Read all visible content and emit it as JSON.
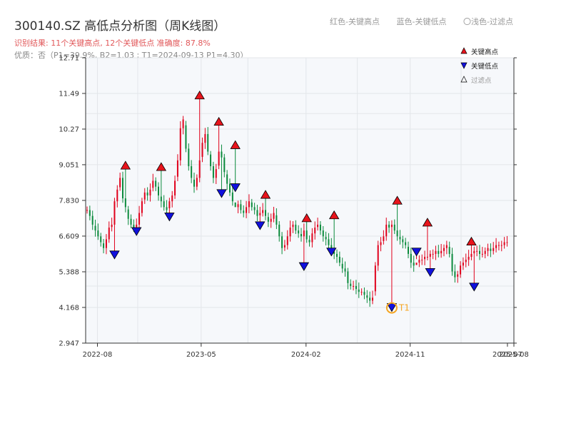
{
  "title": "300140.SZ 高低点分析图（周K线图）",
  "subtitle": "识别结果: 11个关键高点, 12个关键低点  准确度: 87.8%",
  "subtitle2": "优质：否（P1=39.9%, B2=1.03 ; T1=2024-09-13 P1=4.30）",
  "top_legend": {
    "red": "红色-关键高点",
    "blue": "蓝色-关键低点",
    "light": "〇浅色-过滤点"
  },
  "colors": {
    "up": "#e0001b",
    "down": "#0b8a3c",
    "high_marker": "#e8141c",
    "low_marker": "#1111dd",
    "t1": "#f5a623",
    "grid": "#e3e6ea",
    "plot_bg": "#f6f8fb"
  },
  "chart_data": {
    "type": "candlestick",
    "x_ticks": [
      "2022-08",
      "2023-05",
      "2024-02",
      "2024-11",
      "2025-07",
      "2025-08"
    ],
    "y_ticks": [
      "2.947",
      "4.168",
      "5.388",
      "6.609",
      "7.830",
      "9.051",
      "10.27",
      "11.49",
      "12.71"
    ],
    "ylim": [
      2.947,
      12.71
    ],
    "legend": [
      {
        "name": "关键高点",
        "marker": "triangle-up",
        "color": "#e8141c"
      },
      {
        "name": "关键低点",
        "marker": "triangle-down",
        "color": "#1111dd"
      },
      {
        "name": "过滤点",
        "marker": "triangle-up-hollow",
        "color": "#999999"
      }
    ],
    "key_highs": [
      {
        "date": "2022-10-14",
        "value": 8.9
      },
      {
        "date": "2023-01-13",
        "value": 8.85
      },
      {
        "date": "2023-04-28",
        "value": 11.3
      },
      {
        "date": "2023-06-16",
        "value": 10.4
      },
      {
        "date": "2023-07-28",
        "value": 9.6
      },
      {
        "date": "2023-10-20",
        "value": 7.9
      },
      {
        "date": "2024-02-02",
        "value": 7.1
      },
      {
        "date": "2024-04-12",
        "value": 7.2
      },
      {
        "date": "2024-09-27",
        "value": 7.7
      },
      {
        "date": "2024-12-20",
        "value": 6.95
      },
      {
        "date": "2025-04-11",
        "value": 6.3
      }
    ],
    "key_lows": [
      {
        "date": "2022-09-16",
        "value": 6.1
      },
      {
        "date": "2022-11-11",
        "value": 6.9
      },
      {
        "date": "2023-02-10",
        "value": 7.4
      },
      {
        "date": "2023-06-23",
        "value": 8.2
      },
      {
        "date": "2023-07-28",
        "value": 8.4
      },
      {
        "date": "2023-10-06",
        "value": 7.1
      },
      {
        "date": "2024-01-26",
        "value": 5.7
      },
      {
        "date": "2024-04-05",
        "value": 6.2
      },
      {
        "date": "2024-09-13",
        "value": 4.3
      },
      {
        "date": "2024-11-15",
        "value": 6.2
      },
      {
        "date": "2024-12-27",
        "value": 5.5
      },
      {
        "date": "2025-04-18",
        "value": 5.0
      }
    ],
    "t1": {
      "label": "T1",
      "date": "2024-09-13",
      "value": 4.3
    },
    "close_path": [
      7.5,
      7.3,
      7.0,
      6.8,
      6.6,
      6.4,
      6.2,
      6.5,
      6.9,
      7.0,
      7.8,
      8.2,
      8.6,
      7.9,
      7.6,
      7.2,
      7.0,
      6.9,
      7.0,
      7.4,
      7.8,
      8.1,
      8.0,
      8.2,
      8.5,
      8.3,
      8.0,
      7.8,
      7.6,
      7.5,
      7.8,
      8.0,
      8.5,
      9.2,
      10.3,
      10.6,
      9.6,
      9.0,
      8.6,
      8.3,
      8.6,
      9.2,
      9.8,
      10.1,
      9.5,
      9.0,
      8.6,
      8.9,
      9.5,
      9.3,
      8.8,
      8.4,
      8.1,
      7.8,
      7.6,
      7.7,
      7.5,
      7.4,
      7.6,
      7.8,
      7.6,
      7.5,
      7.3,
      7.4,
      7.5,
      7.3,
      7.1,
      7.2,
      7.4,
      7.0,
      6.6,
      6.2,
      6.3,
      6.6,
      6.9,
      7.0,
      6.8,
      6.7,
      6.6,
      6.8,
      6.5,
      6.4,
      6.7,
      6.9,
      7.0,
      6.8,
      6.6,
      6.5,
      6.3,
      6.1,
      6.0,
      5.9,
      5.7,
      5.5,
      5.4,
      5.0,
      4.9,
      4.9,
      4.8,
      4.7,
      4.7,
      4.6,
      4.5,
      4.4,
      4.5,
      5.6,
      6.3,
      6.4,
      6.6,
      7.0,
      6.9,
      7.0,
      6.8,
      6.6,
      6.5,
      6.4,
      6.3,
      6.0,
      5.7,
      5.6,
      5.7,
      5.8,
      5.8,
      5.9,
      5.9,
      6.0,
      6.0,
      6.1,
      6.0,
      6.1,
      6.2,
      6.3,
      6.0,
      5.4,
      5.2,
      5.3,
      5.6,
      5.7,
      5.8,
      5.9,
      6.0,
      6.1,
      6.1,
      6.0,
      6.0,
      6.1,
      6.2,
      6.1,
      6.2,
      6.3,
      6.3,
      6.3,
      6.4,
      6.4
    ]
  }
}
